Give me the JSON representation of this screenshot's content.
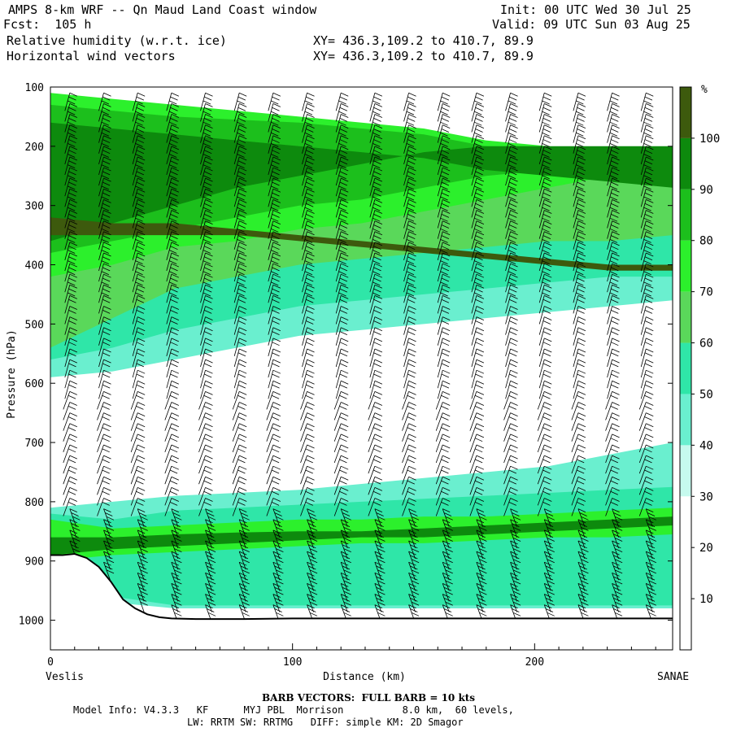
{
  "header": {
    "title": "AMPS 8-km WRF -- Qn Maud Land Coast window",
    "fcst": "Fcst:  105 h",
    "init": "Init: 00 UTC Wed 30 Jul 25",
    "valid": "Valid: 09 UTC Sun 03 Aug 25",
    "field1": "Relative humidity (w.r.t. ice)",
    "field2": "Horizontal wind vectors",
    "xy1": "XY= 436.3,109.2 to 410.7, 89.9",
    "xy2": "XY= 436.3,109.2 to 410.7, 89.9"
  },
  "footer": {
    "barb": "BARB VECTORS:  FULL BARB = 10 kts",
    "model_line1": "Model Info: V4.3.3   KF      MYJ PBL  Morrison          8.0 km,  60 levels,",
    "model_line2": "LW: RRTM SW: RRTMG   DIFF: simple KM: 2D Smagor"
  },
  "chart_data": {
    "type": "heatmap",
    "xlabel": "Distance (km)",
    "ylabel": "Pressure (hPa)",
    "x_start_label": "Veslis",
    "x_end_label": "SANAE",
    "xlim": [
      0,
      257
    ],
    "ylim": [
      1050,
      100
    ],
    "x_ticks": [
      0,
      100,
      200
    ],
    "y_ticks": [
      100,
      200,
      300,
      400,
      500,
      600,
      700,
      800,
      900,
      1000
    ],
    "colorbar": {
      "unit": "%",
      "levels": [
        10,
        20,
        30,
        40,
        50,
        60,
        70,
        80,
        90,
        100
      ],
      "colors": [
        "#ffffff",
        "#ffffff",
        "#ffffff",
        "#c6faee",
        "#6aefcf",
        "#2fe6a8",
        "#5ad85a",
        "#2cf02c",
        "#1cbf1c",
        "#0d8a0d",
        "#3d5a0d"
      ]
    },
    "bands": [
      {
        "level": 40,
        "p_top": [
          180,
          240,
          280,
          300,
          310,
          330,
          330,
          340,
          340,
          340,
          350
        ],
        "p_bot": [
          590,
          580,
          560,
          540,
          520,
          510,
          500,
          490,
          480,
          470,
          460
        ]
      },
      {
        "level": 50,
        "p_top": [
          150,
          200,
          240,
          260,
          280,
          290,
          300,
          310,
          310,
          310,
          320
        ],
        "p_bot": [
          560,
          540,
          510,
          490,
          470,
          460,
          450,
          440,
          430,
          420,
          420
        ]
      },
      {
        "level": 60,
        "p_top": [
          120,
          140,
          160,
          180,
          200,
          210,
          220,
          230,
          230,
          230,
          240
        ],
        "p_bot": [
          540,
          490,
          440,
          420,
          400,
          390,
          380,
          370,
          360,
          360,
          350
        ]
      },
      {
        "level": 70,
        "p_top": [
          110,
          120,
          130,
          140,
          150,
          160,
          170,
          190,
          200,
          210,
          210
        ],
        "p_bot": [
          420,
          400,
          370,
          360,
          340,
          330,
          310,
          290,
          270,
          250,
          240
        ]
      },
      {
        "level": 80,
        "p_top": [
          130,
          140,
          150,
          155,
          160,
          170,
          180,
          200,
          210,
          220,
          230
        ],
        "p_bot": [
          380,
          360,
          340,
          320,
          300,
          290,
          270,
          250,
          240,
          230,
          220
        ]
      },
      {
        "level": 90,
        "p_top": [
          160,
          170,
          180,
          190,
          200,
          210,
          220,
          240,
          250,
          260,
          270
        ],
        "p_bot": [
          360,
          330,
          300,
          270,
          250,
          230,
          210,
          200,
          200,
          200,
          200
        ]
      },
      {
        "level": 100,
        "p_top": [
          320,
          330,
          330,
          340,
          350,
          360,
          370,
          380,
          390,
          400,
          400
        ],
        "p_bot": [
          350,
          350,
          350,
          350,
          360,
          370,
          380,
          390,
          400,
          410,
          410
        ]
      }
    ],
    "low_bands": [
      {
        "level": 40,
        "p_top": [
          810,
          800,
          790,
          785,
          780,
          770,
          760,
          750,
          740,
          720,
          700
        ],
        "p_bot": [
          900,
          970,
          980,
          980,
          980,
          980,
          980,
          980,
          980,
          980,
          980
        ]
      },
      {
        "level": 50,
        "p_top": [
          820,
          830,
          815,
          810,
          805,
          800,
          795,
          790,
          785,
          780,
          775
        ],
        "p_bot": [
          900,
          960,
          975,
          975,
          975,
          975,
          975,
          975,
          975,
          975,
          975
        ]
      },
      {
        "level": 70,
        "p_top": [
          830,
          845,
          840,
          835,
          830,
          830,
          825,
          825,
          820,
          815,
          810
        ],
        "p_bot": [
          900,
          890,
          885,
          880,
          875,
          870,
          870,
          865,
          860,
          860,
          855
        ]
      },
      {
        "level": 90,
        "p_top": [
          860,
          860,
          855,
          852,
          850,
          850,
          845,
          840,
          835,
          830,
          825
        ],
        "p_bot": [
          890,
          880,
          875,
          870,
          865,
          860,
          860,
          855,
          850,
          845,
          840
        ]
      }
    ],
    "terrain": {
      "x": [
        0,
        5,
        10,
        15,
        20,
        25,
        30,
        35,
        40,
        45,
        50,
        60,
        80,
        100,
        150,
        200,
        257
      ],
      "p": [
        890,
        890,
        888,
        895,
        910,
        935,
        965,
        980,
        990,
        995,
        997,
        998,
        998,
        997,
        997,
        997,
        997
      ]
    },
    "barb_columns_x": [
      8,
      22,
      36,
      50,
      64,
      78,
      92,
      106,
      120,
      134,
      148,
      162,
      176,
      190,
      204,
      218,
      232,
      246
    ]
  }
}
